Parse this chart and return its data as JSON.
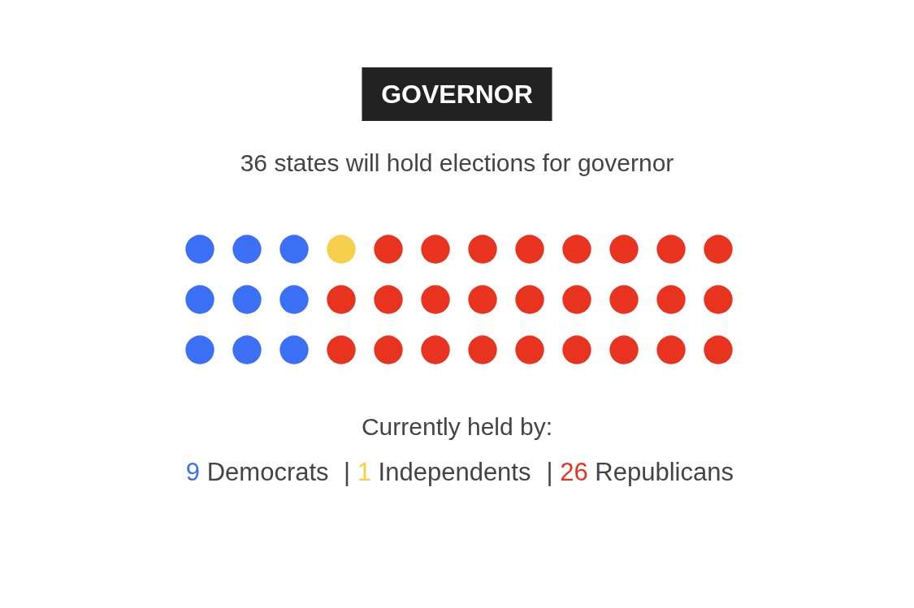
{
  "chart_data": {
    "type": "other",
    "title": "GOVERNOR",
    "subtitle": "36 states will hold elections for governor",
    "categories": [
      "Democrats",
      "Independents",
      "Republicans"
    ],
    "values": [
      9,
      1,
      26
    ],
    "value_labels": [
      "9",
      "1",
      "26"
    ],
    "colors": [
      "#3b6ff5",
      "#f6d04d",
      "#e8341f"
    ],
    "annotations": [
      "Currently held by:",
      "|",
      "|"
    ]
  }
}
